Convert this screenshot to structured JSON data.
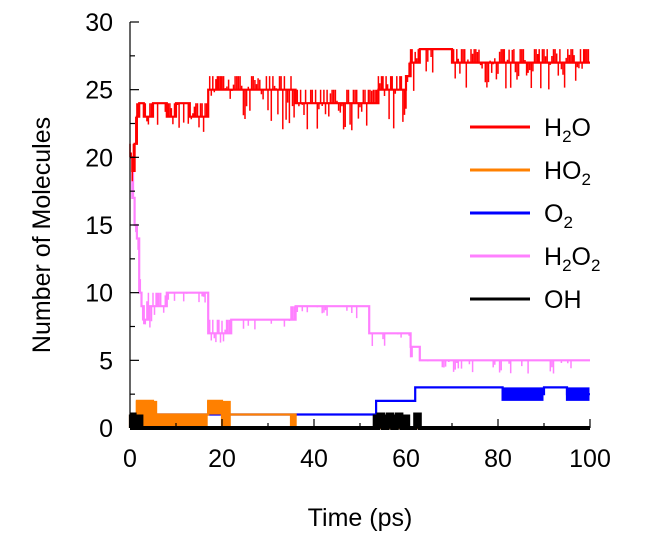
{
  "chart_data": {
    "type": "line",
    "title": "",
    "xlabel": "Time (ps)",
    "ylabel": "Number of Molecules",
    "xlim": [
      0,
      100
    ],
    "ylim": [
      0,
      30
    ],
    "xticks": [
      0,
      20,
      40,
      60,
      80,
      100
    ],
    "yticks": [
      0,
      5,
      10,
      15,
      20,
      25,
      30
    ],
    "grid": false,
    "legend_position": "right",
    "series": [
      {
        "name": "H2O",
        "label_parts": [
          [
            "H",
            ""
          ],
          [
            "2",
            "sub"
          ],
          [
            "O",
            ""
          ]
        ],
        "color": "#ff0000",
        "style": "noisy",
        "x": [
          0,
          0.5,
          1,
          1.5,
          2,
          3,
          5,
          8,
          10,
          13,
          16,
          17,
          20,
          25,
          30,
          35,
          36,
          40,
          45,
          50,
          54,
          55,
          58,
          60,
          61,
          62,
          63,
          70,
          80,
          90,
          100
        ],
        "y": [
          20,
          19,
          21,
          23,
          24,
          23,
          24,
          23,
          24,
          23,
          23,
          25,
          25,
          25,
          25,
          25,
          24,
          24,
          24,
          24,
          25,
          25,
          25,
          26,
          27,
          27,
          28,
          27,
          27,
          27,
          27
        ],
        "low": [
          19,
          18,
          19,
          20,
          21,
          21,
          21,
          21,
          21,
          21,
          21,
          22,
          22,
          22,
          22,
          22,
          22,
          22,
          22,
          22,
          22,
          22,
          22,
          23,
          24,
          24,
          25,
          25,
          25,
          25,
          25
        ],
        "high": [
          21,
          21,
          23,
          24,
          24,
          24,
          24,
          24,
          24,
          24,
          24,
          26,
          26,
          26,
          26,
          26,
          25,
          25,
          25,
          25,
          26,
          26,
          26,
          27,
          28,
          28,
          28,
          28,
          28,
          28,
          28
        ]
      },
      {
        "name": "HO2",
        "label_parts": [
          [
            "HO",
            ""
          ],
          [
            "2",
            "sub"
          ]
        ],
        "color": "#ff8000",
        "style": "step",
        "x": [
          0,
          1.5,
          3,
          5,
          6,
          17,
          20,
          22,
          35,
          36,
          62,
          62.8,
          63,
          100
        ],
        "y": [
          0,
          2,
          2,
          0,
          1,
          2,
          1,
          1,
          1,
          0,
          0,
          1,
          0,
          0
        ],
        "low": [
          0,
          0,
          0,
          0,
          0,
          1,
          0,
          1,
          0,
          0,
          0,
          0,
          0,
          0
        ],
        "high": [
          1,
          2,
          2,
          2,
          1,
          2,
          2,
          1,
          1,
          0,
          0,
          1,
          0,
          0
        ]
      },
      {
        "name": "O2",
        "label_parts": [
          [
            "O",
            ""
          ],
          [
            "2",
            "sub"
          ]
        ],
        "color": "#0000ff",
        "style": "step",
        "x": [
          0,
          6,
          53.5,
          62,
          80,
          81,
          90,
          94,
          95,
          100
        ],
        "y": [
          0,
          1,
          2,
          3,
          3,
          2.5,
          3,
          3,
          2.5,
          2.5
        ],
        "low": [
          0,
          1,
          2,
          3,
          3,
          2,
          3,
          3,
          2,
          2
        ],
        "high": [
          0,
          1,
          2,
          3,
          3,
          3,
          3,
          3,
          3,
          3
        ]
      },
      {
        "name": "H2O2",
        "label_parts": [
          [
            "H",
            ""
          ],
          [
            "2",
            "sub"
          ],
          [
            "O",
            ""
          ],
          [
            "2",
            "sub"
          ]
        ],
        "color": "#ff80ff",
        "style": "noisy",
        "x": [
          0,
          0.5,
          1,
          1.5,
          2,
          2.5,
          3,
          4,
          5,
          8,
          10,
          13,
          16,
          17,
          18,
          20,
          22,
          25,
          30,
          35,
          36,
          40,
          45,
          50,
          52,
          55,
          60,
          61,
          62,
          63,
          70,
          80,
          90,
          100
        ],
        "y": [
          20,
          17,
          15,
          14,
          10,
          9,
          8,
          9,
          9,
          10,
          10,
          10,
          10,
          7,
          7,
          7,
          8,
          8,
          8,
          8,
          9,
          9,
          9,
          9,
          7,
          7,
          7,
          6,
          6,
          5,
          5,
          5,
          5,
          5
        ],
        "low": [
          18,
          15,
          12,
          8,
          7,
          6,
          7,
          7,
          8,
          9,
          9,
          9,
          9,
          6,
          6,
          6,
          6,
          7,
          7,
          7,
          8,
          8,
          8,
          8,
          6,
          6,
          6,
          5,
          4,
          4,
          4,
          4,
          4,
          4
        ],
        "high": [
          20,
          19,
          17,
          15,
          11,
          10,
          10,
          10,
          10,
          10,
          10,
          10,
          10,
          8,
          8,
          8,
          8,
          8,
          8,
          9,
          9,
          9,
          9,
          9,
          7,
          7,
          7,
          7,
          6,
          5,
          5,
          5,
          5,
          5
        ]
      },
      {
        "name": "OH",
        "label_parts": [
          [
            "OH",
            ""
          ]
        ],
        "color": "#000000",
        "style": "step",
        "x": [
          0,
          0.5,
          1,
          3,
          53,
          54,
          55,
          56,
          57,
          58,
          59,
          61,
          62,
          63,
          100
        ],
        "y": [
          0,
          1,
          0,
          0,
          0,
          1,
          0,
          1,
          0,
          1,
          0,
          0,
          1,
          0,
          0
        ],
        "low": [
          0,
          0,
          0,
          0,
          0,
          0,
          0,
          0,
          0,
          0,
          0,
          0,
          0,
          0,
          0
        ],
        "high": [
          1,
          1,
          1,
          0,
          1,
          1,
          1,
          1,
          1,
          1,
          1,
          0,
          1,
          0,
          0
        ]
      }
    ]
  }
}
